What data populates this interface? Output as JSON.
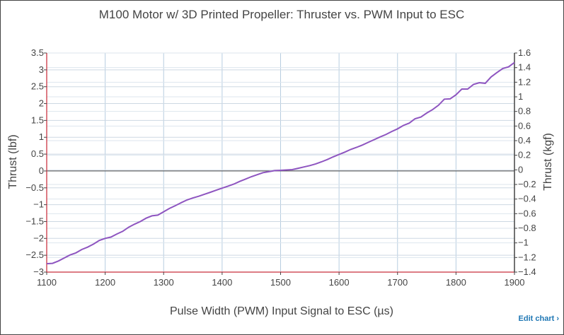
{
  "chart_data": {
    "type": "line",
    "title": "M100 Motor w/ 3D Printed Propeller: Thruster vs. PWM Input to ESC",
    "xlabel": "Pulse Width (PWM) Input Signal to ESC (µs)",
    "ylabel": "Thrust (lbf)",
    "y2label": "Thrust (kgf)",
    "xlim": [
      1100,
      1900
    ],
    "ylim": [
      -3,
      3.5
    ],
    "y2lim": [
      -1.4,
      1.6
    ],
    "xticks": [
      "1100",
      "1200",
      "1300",
      "1400",
      "1500",
      "1600",
      "1700",
      "1800",
      "1900"
    ],
    "yticks": [
      "3.5",
      "3",
      "2.5",
      "2",
      "1.5",
      "1",
      "0.5",
      "0",
      "−0.5",
      "−1",
      "−1.5",
      "−2",
      "−2.5",
      "−3"
    ],
    "y2ticks": [
      "1.6",
      "1.4",
      "1.2",
      "1",
      "0.8",
      "0.6",
      "0.4",
      "0.2",
      "0",
      "−0.2",
      "−0.4",
      "−0.6",
      "−0.8",
      "−1",
      "−1.2",
      "−1.4"
    ],
    "grid": true,
    "line_color": "#8e55c0",
    "series": [
      {
        "x": [
          1100,
          1110,
          1120,
          1130,
          1140,
          1150,
          1160,
          1170,
          1180,
          1190,
          1200,
          1210,
          1220,
          1230,
          1240,
          1250,
          1260,
          1270,
          1280,
          1290,
          1300,
          1310,
          1320,
          1330,
          1340,
          1350,
          1360,
          1370,
          1380,
          1390,
          1400,
          1410,
          1420,
          1430,
          1440,
          1450,
          1460,
          1470,
          1480,
          1490,
          1500,
          1510,
          1520,
          1530,
          1540,
          1550,
          1560,
          1570,
          1580,
          1590,
          1600,
          1610,
          1620,
          1630,
          1640,
          1650,
          1660,
          1670,
          1680,
          1690,
          1700,
          1710,
          1720,
          1730,
          1740,
          1750,
          1760,
          1770,
          1780,
          1790,
          1800,
          1810,
          1820,
          1830,
          1840,
          1850,
          1860,
          1870,
          1880,
          1890,
          1900
        ],
        "y": [
          -2.75,
          -2.74,
          -2.67,
          -2.58,
          -2.49,
          -2.43,
          -2.33,
          -2.26,
          -2.17,
          -2.06,
          -2.0,
          -1.96,
          -1.87,
          -1.79,
          -1.67,
          -1.58,
          -1.5,
          -1.4,
          -1.33,
          -1.31,
          -1.21,
          -1.11,
          -1.03,
          -0.94,
          -0.86,
          -0.8,
          -0.75,
          -0.69,
          -0.63,
          -0.57,
          -0.51,
          -0.45,
          -0.39,
          -0.31,
          -0.24,
          -0.17,
          -0.11,
          -0.05,
          -0.02,
          0.01,
          0.02,
          0.03,
          0.04,
          0.08,
          0.12,
          0.16,
          0.21,
          0.27,
          0.34,
          0.42,
          0.49,
          0.56,
          0.64,
          0.7,
          0.77,
          0.85,
          0.93,
          1.01,
          1.08,
          1.17,
          1.25,
          1.35,
          1.42,
          1.55,
          1.6,
          1.72,
          1.82,
          1.95,
          2.13,
          2.14,
          2.26,
          2.43,
          2.43,
          2.57,
          2.62,
          2.6,
          2.79,
          2.92,
          3.04,
          3.09,
          3.22
        ]
      }
    ]
  },
  "edit_link": "Edit chart ›"
}
